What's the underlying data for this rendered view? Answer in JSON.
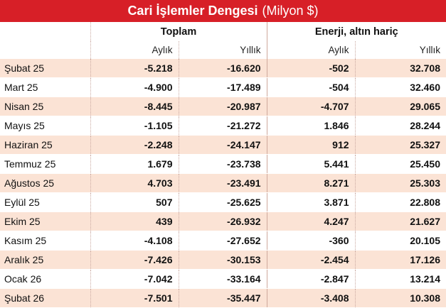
{
  "title": {
    "main": "Cari İşlemler Dengesi",
    "unit": "(Milyon $)"
  },
  "colors": {
    "title_bg": "#d71f27",
    "row_band": "#fbe3d5"
  },
  "groups": [
    "Toplam",
    "Enerji, altın hariç"
  ],
  "subheaders": [
    "Aylık",
    "Yıllık",
    "Aylık",
    "Yıllık"
  ],
  "rows": [
    {
      "period": "Şubat 25",
      "values": [
        "-5.218",
        "-16.620",
        "-502",
        "32.708"
      ]
    },
    {
      "period": "Mart 25",
      "values": [
        "-4.900",
        "-17.489",
        "-504",
        "32.460"
      ]
    },
    {
      "period": "Nisan 25",
      "values": [
        "-8.445",
        "-20.987",
        "-4.707",
        "29.065"
      ]
    },
    {
      "period": "Mayıs 25",
      "values": [
        "-1.105",
        "-21.272",
        "1.846",
        "28.244"
      ]
    },
    {
      "period": "Haziran 25",
      "values": [
        "-2.248",
        "-24.147",
        "912",
        "25.327"
      ]
    },
    {
      "period": "Temmuz 25",
      "values": [
        "1.679",
        "-23.738",
        "5.441",
        "25.450"
      ]
    },
    {
      "period": "Ağustos 25",
      "values": [
        "4.703",
        "-23.491",
        "8.271",
        "25.303"
      ]
    },
    {
      "period": "Eylül 25",
      "values": [
        "507",
        "-25.625",
        "3.871",
        "22.808"
      ]
    },
    {
      "period": "Ekim 25",
      "values": [
        "439",
        "-26.932",
        "4.247",
        "21.627"
      ]
    },
    {
      "period": "Kasım 25",
      "values": [
        "-4.108",
        "-27.652",
        "-360",
        "20.105"
      ]
    },
    {
      "period": "Aralık 25",
      "values": [
        "-7.426",
        "-30.153",
        "-2.454",
        "17.126"
      ]
    },
    {
      "period": "Ocak 26",
      "values": [
        "-7.042",
        "-33.164",
        "-2.847",
        "13.214"
      ]
    },
    {
      "period": "Şubat 26",
      "values": [
        "-7.501",
        "-35.447",
        "-3.408",
        "10.308"
      ]
    }
  ]
}
